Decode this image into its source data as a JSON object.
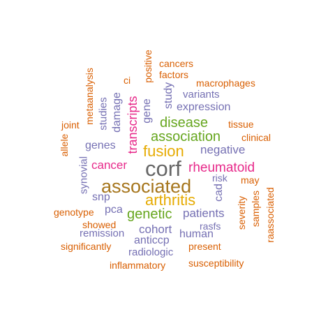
{
  "palette": {
    "gray": "#666666",
    "brown": "#a6761d",
    "gold": "#e6ab02",
    "green": "#66a61e",
    "magenta": "#e7298a",
    "purple": "#7570b3",
    "orange": "#d95f02"
  },
  "words": [
    {
      "text": "corf",
      "color": "#666666"
    },
    {
      "text": "associated",
      "color": "#a6761d"
    },
    {
      "text": "fusion",
      "color": "#e6ab02"
    },
    {
      "text": "arthritis",
      "color": "#e6ab02"
    },
    {
      "text": "rheumatoid",
      "color": "#e7298a"
    },
    {
      "text": "association",
      "color": "#66a61e"
    },
    {
      "text": "disease",
      "color": "#66a61e"
    },
    {
      "text": "genetic",
      "color": "#66a61e"
    },
    {
      "text": "transcripts",
      "color": "#e7298a"
    },
    {
      "text": "cancer",
      "color": "#e7298a"
    },
    {
      "text": "expression",
      "color": "#7570b3"
    },
    {
      "text": "negative",
      "color": "#7570b3"
    },
    {
      "text": "patients",
      "color": "#7570b3"
    },
    {
      "text": "cohort",
      "color": "#7570b3"
    },
    {
      "text": "genes",
      "color": "#7570b3"
    },
    {
      "text": "damage",
      "color": "#7570b3"
    },
    {
      "text": "gene",
      "color": "#7570b3"
    },
    {
      "text": "study",
      "color": "#7570b3"
    },
    {
      "text": "studies",
      "color": "#7570b3"
    },
    {
      "text": "variants",
      "color": "#7570b3"
    },
    {
      "text": "snp",
      "color": "#7570b3"
    },
    {
      "text": "pca",
      "color": "#7570b3"
    },
    {
      "text": "cad",
      "color": "#7570b3"
    },
    {
      "text": "risk",
      "color": "#7570b3"
    },
    {
      "text": "human",
      "color": "#7570b3"
    },
    {
      "text": "rasfs",
      "color": "#7570b3"
    },
    {
      "text": "anticcp",
      "color": "#7570b3"
    },
    {
      "text": "radiologic",
      "color": "#7570b3"
    },
    {
      "text": "remission",
      "color": "#7570b3"
    },
    {
      "text": "synovial",
      "color": "#7570b3"
    },
    {
      "text": "macrophages",
      "color": "#d95f02"
    },
    {
      "text": "cancers",
      "color": "#d95f02"
    },
    {
      "text": "factors",
      "color": "#d95f02"
    },
    {
      "text": "positive",
      "color": "#d95f02"
    },
    {
      "text": "ci",
      "color": "#d95f02"
    },
    {
      "text": "metaanalysis",
      "color": "#d95f02"
    },
    {
      "text": "joint",
      "color": "#d95f02"
    },
    {
      "text": "allele",
      "color": "#d95f02"
    },
    {
      "text": "tissue",
      "color": "#d95f02"
    },
    {
      "text": "clinical",
      "color": "#d95f02"
    },
    {
      "text": "may",
      "color": "#d95f02"
    },
    {
      "text": "samples",
      "color": "#d95f02"
    },
    {
      "text": "severity",
      "color": "#d95f02"
    },
    {
      "text": "raassociated",
      "color": "#d95f02"
    },
    {
      "text": "genotype",
      "color": "#d95f02"
    },
    {
      "text": "showed",
      "color": "#d95f02"
    },
    {
      "text": "significantly",
      "color": "#d95f02"
    },
    {
      "text": "present",
      "color": "#d95f02"
    },
    {
      "text": "inflammatory",
      "color": "#d95f02"
    },
    {
      "text": "susceptibility",
      "color": "#d95f02"
    }
  ]
}
